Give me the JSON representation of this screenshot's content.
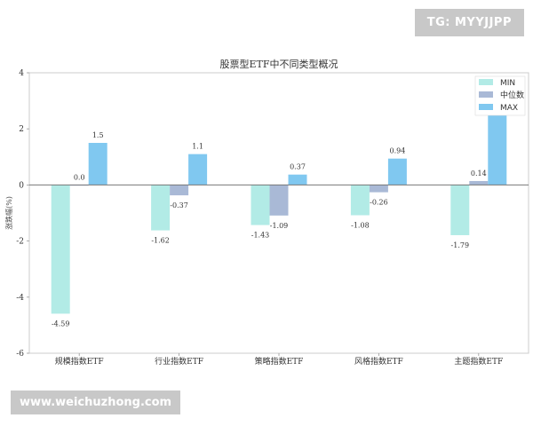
{
  "watermarks": {
    "top": "TG: MYYJJPP",
    "bottom": "www.weichuzhong.com"
  },
  "chart_data": {
    "type": "bar",
    "title": "股票型ETF中不同类型概况",
    "xlabel": "",
    "ylabel": "涨跌幅(%)",
    "ylim": [
      -6,
      4
    ],
    "yticks": [
      4,
      2,
      0,
      -2,
      -4,
      -6
    ],
    "categories": [
      "规模指数ETF",
      "行业指数ETF",
      "策略指数ETF",
      "风格指数ETF",
      "主题指数ETF"
    ],
    "series": [
      {
        "name": "MIN",
        "color": "#b2ebe6",
        "values": [
          -4.59,
          -1.62,
          -1.43,
          -1.08,
          -1.79
        ],
        "labels": [
          "-4.59",
          "-1.62",
          "-1.43",
          "-1.08",
          "-1.79"
        ]
      },
      {
        "name": "中位数",
        "color": "#a9b9d6",
        "values": [
          0.0,
          -0.37,
          -1.09,
          -0.26,
          0.14
        ],
        "labels": [
          "0.0",
          "-0.37",
          "-1.09",
          "-0.26",
          "0.14"
        ]
      },
      {
        "name": "MAX",
        "color": "#80c8f0",
        "values": [
          1.5,
          1.1,
          0.37,
          0.94,
          3.0
        ],
        "labels": [
          "1.5",
          "1.1",
          "0.37",
          "0.94",
          ""
        ]
      }
    ],
    "legend_position": "top-right",
    "grid": false
  }
}
